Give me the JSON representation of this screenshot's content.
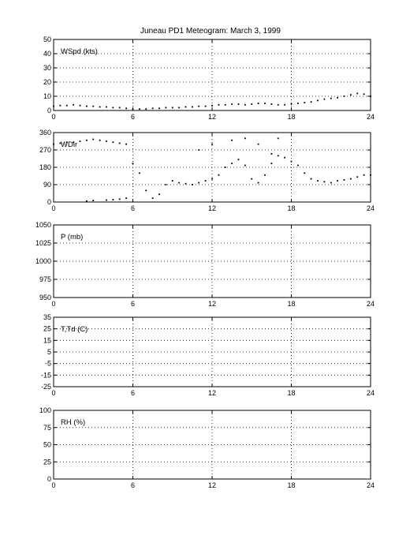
{
  "title": "Juneau PD1 Meteogram:      March  3, 1999",
  "chart_data": [
    {
      "type": "scatter",
      "label": "WSpd (kts)",
      "xlim": [
        0,
        24
      ],
      "ylim": [
        0,
        50
      ],
      "xticks": [
        0,
        6,
        12,
        18,
        24
      ],
      "yticks": [
        0,
        10,
        20,
        30,
        40,
        50
      ],
      "grid": true,
      "series": [
        {
          "x": [
            0,
            0.5,
            1,
            1.5,
            2,
            2.5,
            3,
            3.5,
            4,
            4.5,
            5,
            5.5,
            6,
            6.5,
            7,
            7.5,
            8,
            8.5,
            9,
            9.5,
            10,
            10.5,
            11,
            11.5,
            12,
            12.5,
            13,
            13.5,
            14,
            14.5,
            15,
            15.5,
            16,
            16.5,
            17,
            17.5,
            18,
            18.5,
            19,
            19.5,
            20,
            20.5,
            21,
            21.5,
            22,
            22.5,
            23,
            23.5,
            24
          ],
          "values": [
            3,
            3.5,
            3.5,
            4,
            3.5,
            3,
            3,
            2.5,
            2.5,
            2,
            2,
            1.5,
            1,
            1,
            1,
            1.5,
            1.5,
            2,
            2,
            2,
            2.5,
            2.5,
            3,
            3,
            3.5,
            4,
            4,
            4.5,
            4.5,
            4,
            4.5,
            5,
            5,
            4.5,
            4,
            4,
            4.5,
            5,
            5.5,
            6,
            7,
            8,
            8.5,
            9,
            10,
            11,
            12,
            11.5,
            10
          ]
        }
      ]
    },
    {
      "type": "scatter",
      "label": "WDir",
      "xlim": [
        0,
        24
      ],
      "ylim": [
        0,
        360
      ],
      "xticks": [
        0,
        6,
        12,
        18,
        24
      ],
      "yticks": [
        0,
        90,
        180,
        270,
        360
      ],
      "grid": true,
      "series": [
        {
          "x": [
            0,
            0.5,
            1,
            1.5,
            2,
            2.5,
            3,
            3.5,
            4,
            4.5,
            5,
            5.5,
            6,
            6.5,
            7,
            7.5,
            8,
            8.5,
            9,
            9.5,
            10,
            10.5,
            11,
            11.5,
            12,
            12.5,
            13,
            13.5,
            14,
            14.5,
            15,
            15.5,
            16,
            16.5,
            17,
            17.5,
            18,
            18.5,
            19,
            19.5,
            20,
            20.5,
            21,
            21.5,
            22,
            22.5,
            23,
            23.5,
            24
          ],
          "values": [
            300,
            305,
            310,
            310,
            315,
            320,
            325,
            320,
            315,
            310,
            305,
            300,
            200,
            150,
            60,
            20,
            40,
            90,
            110,
            100,
            95,
            90,
            100,
            110,
            120,
            140,
            180,
            200,
            220,
            190,
            120,
            100,
            140,
            200,
            240,
            230,
            210,
            190,
            150,
            120,
            110,
            105,
            100,
            110,
            115,
            120,
            130,
            140,
            140
          ]
        },
        {
          "x": [
            2.5,
            3,
            4,
            4.5,
            5,
            5.5,
            11,
            12,
            13.5,
            14.5,
            15.5,
            16.5,
            17
          ],
          "values": [
            5,
            8,
            10,
            12,
            15,
            20,
            270,
            300,
            320,
            330,
            300,
            250,
            330
          ]
        }
      ]
    },
    {
      "type": "scatter",
      "label": "P (mb)",
      "xlim": [
        0,
        24
      ],
      "ylim": [
        950,
        1050
      ],
      "xticks": [
        0,
        6,
        12,
        18,
        24
      ],
      "yticks": [
        950,
        975,
        1000,
        1025,
        1050
      ],
      "grid": true,
      "series": []
    },
    {
      "type": "scatter",
      "label": "T,Td (C)",
      "xlim": [
        0,
        24
      ],
      "ylim": [
        -25,
        35
      ],
      "xticks": [
        0,
        6,
        12,
        18,
        24
      ],
      "yticks": [
        -25,
        -15,
        -5,
        5,
        15,
        25,
        35
      ],
      "grid": true,
      "series": []
    },
    {
      "type": "scatter",
      "label": "RH (%)",
      "xlim": [
        0,
        24
      ],
      "ylim": [
        0,
        100
      ],
      "xticks": [
        0,
        6,
        12,
        18,
        24
      ],
      "yticks": [
        0,
        25,
        50,
        75,
        100
      ],
      "grid": true,
      "series": []
    }
  ]
}
